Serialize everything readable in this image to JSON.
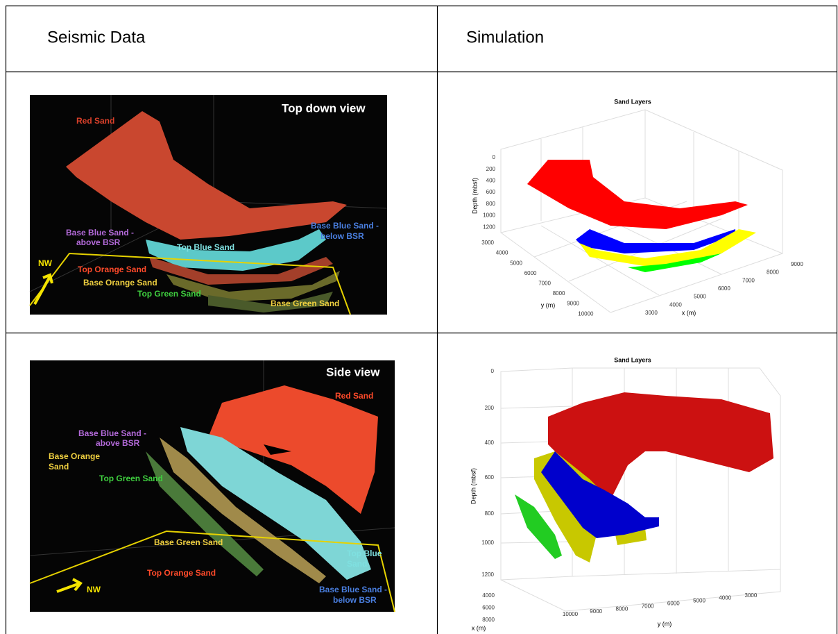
{
  "header": {
    "columns": [
      "Seismic Data",
      "Simulation"
    ]
  },
  "rows": [
    {
      "seismic": {
        "title": "Top down view",
        "labels": [
          "Red Sand",
          "Base Blue Sand -",
          "above BSR",
          "Top Blue Sand",
          "Base Blue Sand -",
          "below BSR",
          "NW",
          "Top Orange Sand",
          "Base Orange Sand",
          "Top Green Sand",
          "Base Green Sand"
        ]
      },
      "simulation": {
        "title": "Sand Layers",
        "z_label": "Depth (mbsf)",
        "z_ticks": [
          0,
          200,
          400,
          600,
          800,
          1000,
          1200
        ],
        "y_label": "y (m)",
        "y_ticks": [
          3000,
          4000,
          5000,
          6000,
          7000,
          8000,
          9000,
          10000
        ],
        "x_label": "x (m)",
        "x_ticks": [
          3000,
          4000,
          5000,
          6000,
          7000,
          8000,
          9000
        ]
      }
    },
    {
      "seismic": {
        "title": "Side view",
        "labels": [
          "Red Sand",
          "Base Blue Sand -",
          "above BSR",
          "Base Orange",
          "Sand",
          "Top Green Sand",
          "Base Green Sand",
          "Top Orange Sand",
          "Top Blue",
          "Sand",
          "NW",
          "Base Blue Sand -",
          "below BSR"
        ]
      },
      "simulation": {
        "title": "Sand Layers",
        "z_label": "Depth (mbsf)",
        "z_ticks": [
          0,
          200,
          400,
          600,
          800,
          1000,
          1200
        ],
        "x_label": "x (m)",
        "x_ticks": [
          4000,
          6000,
          8000
        ],
        "y_label": "y (m)",
        "y_ticks": [
          10000,
          9000,
          8000,
          7000,
          6000,
          5000,
          4000,
          3000
        ]
      }
    }
  ]
}
